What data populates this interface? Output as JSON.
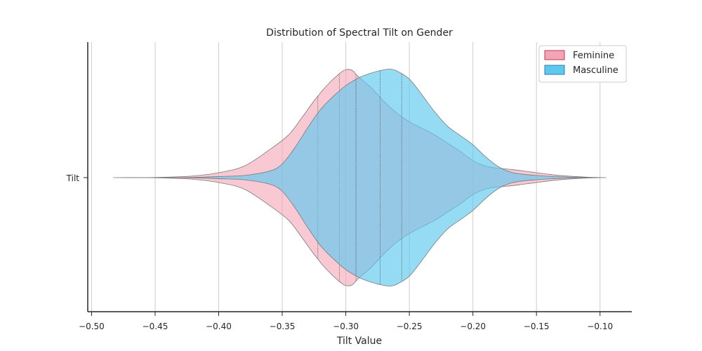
{
  "chart_data": {
    "type": "violin",
    "title": "Distribution of Spectral Tilt on Gender",
    "xlabel": "Tilt Value",
    "ylabel": "",
    "xlim": [
      -0.503,
      -0.075
    ],
    "x_ticks": [
      -0.5,
      -0.45,
      -0.4,
      -0.35,
      -0.3,
      -0.25,
      -0.2,
      -0.15,
      -0.1
    ],
    "x_tick_labels": [
      "−0.50",
      "−0.45",
      "−0.40",
      "−0.35",
      "−0.30",
      "−0.25",
      "−0.20",
      "−0.15",
      "−0.10"
    ],
    "y_categories": [
      "Tilt"
    ],
    "grid": "vertical",
    "legend_position": "top-right",
    "series": [
      {
        "name": "Feminine",
        "color": "#f4a5b5",
        "fill_opacity": 0.6,
        "edge_color": "#c0394f",
        "min": -0.483,
        "max": -0.095,
        "quartiles": [
          -0.322,
          -0.305,
          -0.292
        ],
        "density_profile": [
          [
            -0.483,
            0.0
          ],
          [
            -0.46,
            0.0
          ],
          [
            -0.44,
            0.005
          ],
          [
            -0.42,
            0.015
          ],
          [
            -0.4,
            0.045
          ],
          [
            -0.38,
            0.105
          ],
          [
            -0.36,
            0.255
          ],
          [
            -0.345,
            0.39
          ],
          [
            -0.335,
            0.54
          ],
          [
            -0.325,
            0.7
          ],
          [
            -0.315,
            0.84
          ],
          [
            -0.305,
            0.95
          ],
          [
            -0.3,
            0.985
          ],
          [
            -0.295,
            0.98
          ],
          [
            -0.29,
            0.92
          ],
          [
            -0.28,
            0.82
          ],
          [
            -0.27,
            0.695
          ],
          [
            -0.26,
            0.59
          ],
          [
            -0.25,
            0.51
          ],
          [
            -0.24,
            0.45
          ],
          [
            -0.23,
            0.39
          ],
          [
            -0.22,
            0.315
          ],
          [
            -0.21,
            0.24
          ],
          [
            -0.2,
            0.155
          ],
          [
            -0.19,
            0.105
          ],
          [
            -0.18,
            0.085
          ],
          [
            -0.17,
            0.075
          ],
          [
            -0.16,
            0.06
          ],
          [
            -0.15,
            0.045
          ],
          [
            -0.14,
            0.03
          ],
          [
            -0.13,
            0.018
          ],
          [
            -0.12,
            0.01
          ],
          [
            -0.11,
            0.004
          ],
          [
            -0.1,
            0.001
          ],
          [
            -0.095,
            0.0
          ]
        ]
      },
      {
        "name": "Masculine",
        "color": "#5ec8ee",
        "fill_opacity": 0.65,
        "edge_color": "#2f7fa8",
        "min": -0.475,
        "max": -0.105,
        "quartiles": [
          -0.292,
          -0.273,
          -0.256
        ],
        "density_profile": [
          [
            -0.475,
            0.0
          ],
          [
            -0.45,
            0.0
          ],
          [
            -0.42,
            0.002
          ],
          [
            -0.4,
            0.01
          ],
          [
            -0.38,
            0.02
          ],
          [
            -0.36,
            0.06
          ],
          [
            -0.35,
            0.125
          ],
          [
            -0.34,
            0.275
          ],
          [
            -0.33,
            0.455
          ],
          [
            -0.32,
            0.62
          ],
          [
            -0.31,
            0.74
          ],
          [
            -0.3,
            0.84
          ],
          [
            -0.29,
            0.91
          ],
          [
            -0.28,
            0.955
          ],
          [
            -0.27,
            0.985
          ],
          [
            -0.265,
            0.99
          ],
          [
            -0.26,
            0.975
          ],
          [
            -0.25,
            0.9
          ],
          [
            -0.24,
            0.755
          ],
          [
            -0.23,
            0.6
          ],
          [
            -0.22,
            0.47
          ],
          [
            -0.21,
            0.385
          ],
          [
            -0.2,
            0.3
          ],
          [
            -0.19,
            0.19
          ],
          [
            -0.18,
            0.1
          ],
          [
            -0.17,
            0.05
          ],
          [
            -0.16,
            0.03
          ],
          [
            -0.15,
            0.02
          ],
          [
            -0.14,
            0.012
          ],
          [
            -0.13,
            0.007
          ],
          [
            -0.12,
            0.003
          ],
          [
            -0.11,
            0.001
          ],
          [
            -0.105,
            0.0
          ]
        ]
      }
    ]
  }
}
